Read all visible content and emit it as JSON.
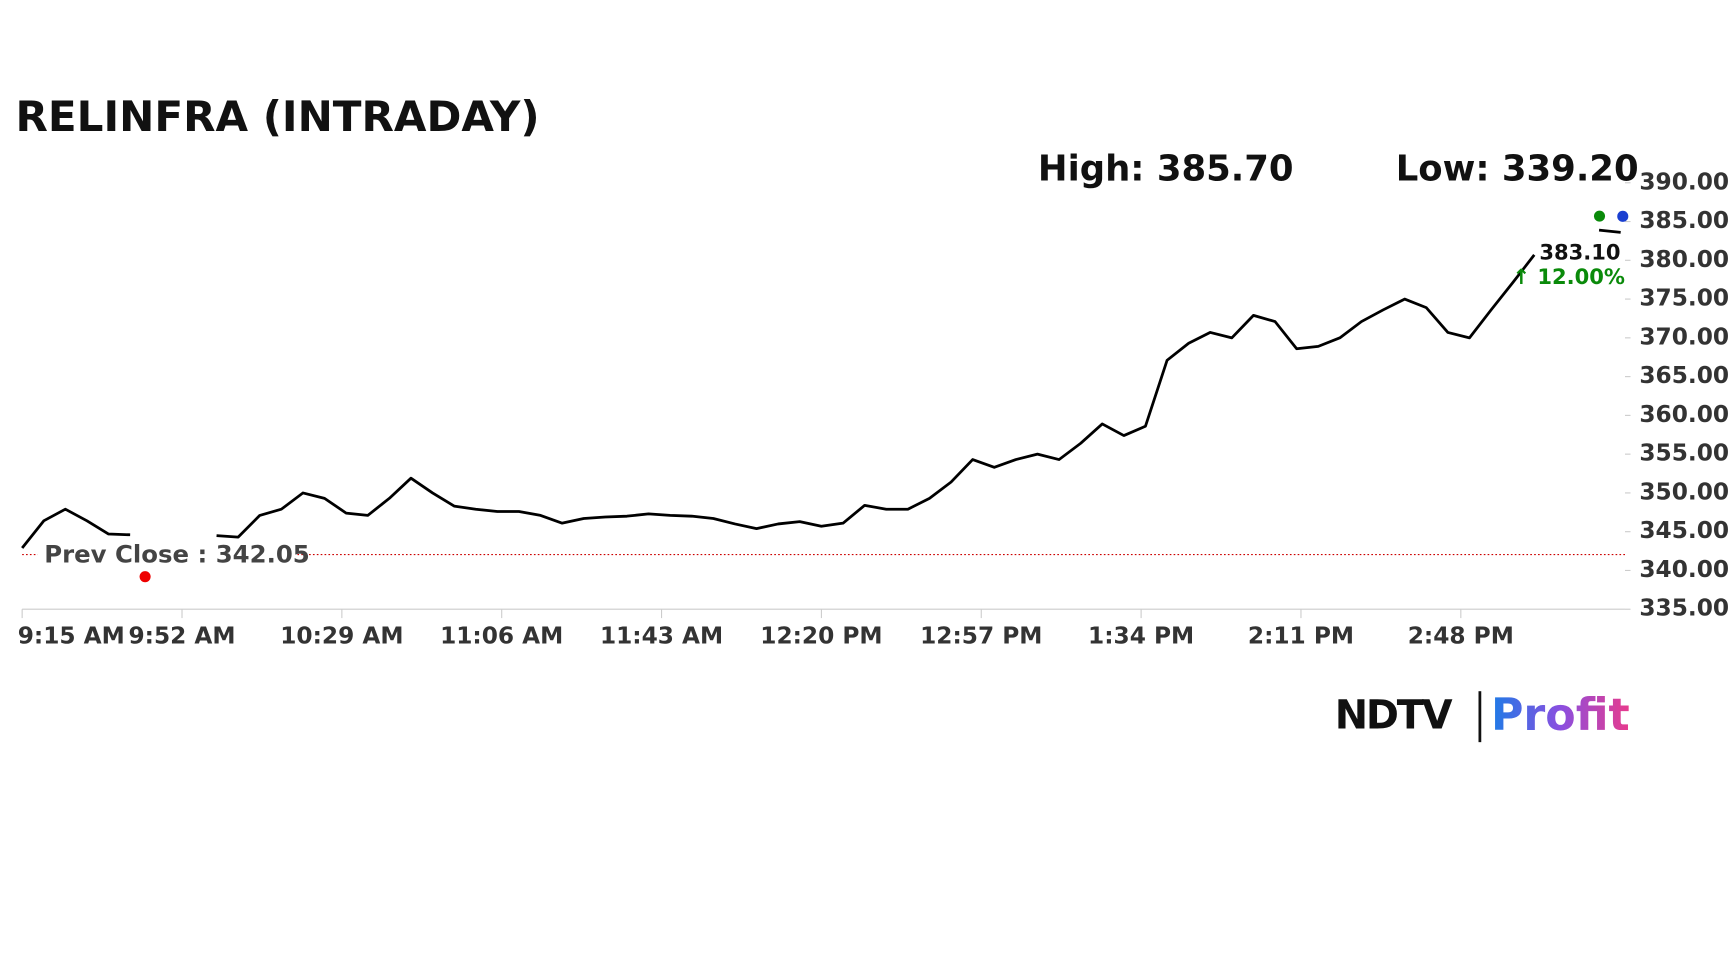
{
  "chart_data": {
    "type": "line",
    "title": "RELINFRA (INTRADAY)",
    "high": {
      "value": 385.7,
      "label": "High: 385.70"
    },
    "low": {
      "value": 339.2,
      "label": "Low: 339.20"
    },
    "prev_close": {
      "value": 342.05,
      "label": "Prev Close : 342.05"
    },
    "last": {
      "value": 383.1,
      "label": "383.10"
    },
    "change": {
      "value": 12,
      "label": "↑ 12.00%"
    },
    "x": [
      "9:15 AM",
      "9:20 AM",
      "9:25 AM",
      "9:30 AM",
      "9:35 AM",
      "9:40 AM",
      "9:45 AM",
      "9:50 AM",
      "9:55 AM",
      "10:00 AM",
      "10:05 AM",
      "10:10 AM",
      "10:15 AM",
      "10:20 AM",
      "10:25 AM",
      "10:30 AM",
      "10:35 AM",
      "10:40 AM",
      "10:45 AM",
      "10:50 AM",
      "10:55 AM",
      "11:00 AM",
      "11:05 AM",
      "11:10 AM",
      "11:15 AM",
      "11:20 AM",
      "11:25 AM",
      "11:30 AM",
      "11:35 AM",
      "11:40 AM",
      "11:45 AM",
      "11:50 AM",
      "11:55 AM",
      "12:00 PM",
      "12:05 PM",
      "12:10 PM",
      "12:15 PM",
      "12:20 PM",
      "12:25 PM",
      "12:30 PM",
      "12:35 PM",
      "12:40 PM",
      "12:45 PM",
      "12:50 PM",
      "12:55 PM",
      "1:00 PM",
      "1:05 PM",
      "1:10 PM",
      "1:15 PM",
      "1:20 PM",
      "1:25 PM",
      "1:30 PM",
      "1:35 PM",
      "1:40 PM",
      "1:45 PM",
      "1:50 PM",
      "1:55 PM",
      "2:00 PM",
      "2:05 PM",
      "2:10 PM",
      "2:15 PM",
      "2:20 PM",
      "2:25 PM",
      "2:30 PM",
      "2:35 PM",
      "2:40 PM",
      "2:45 PM",
      "2:50 PM",
      "2:55 PM",
      "3:00 PM",
      "3:05 PM",
      "3:10 PM",
      "3:15 PM",
      "3:20 PM",
      "3:25 PM"
    ],
    "series": [
      {
        "name": "RELINFRA",
        "color": "#000000",
        "values": [
          342.9,
          346.4,
          347.9,
          346.4,
          344.7,
          344.6,
          null,
          null,
          null,
          344.5,
          344.3,
          347.1,
          347.9,
          350,
          349.3,
          347.4,
          347.1,
          349.3,
          351.9,
          350,
          348.3,
          347.9,
          347.6,
          347.6,
          347.1,
          346.1,
          346.7,
          346.9,
          347,
          347.3,
          347.1,
          347,
          346.7,
          346,
          345.4,
          346,
          346.3,
          345.7,
          346.1,
          348.4,
          347.9,
          347.9,
          349.3,
          351.4,
          354.3,
          353.3,
          354.3,
          355,
          354.3,
          356.4,
          358.9,
          357.4,
          358.6,
          367.1,
          369.3,
          370.7,
          370,
          372.9,
          372.1,
          368.6,
          368.9,
          370,
          372.1,
          373.6,
          375,
          373.9,
          370.7,
          370,
          373.6,
          377.1,
          380.7,
          null,
          null,
          383.9,
          383.6
        ]
      }
    ],
    "xlim": [
      "9:15 AM",
      "3:26 PM"
    ],
    "xticks": [
      "9:15 AM",
      "9:52 AM",
      "10:29 AM",
      "11:06 AM",
      "11:43 AM",
      "12:20 PM",
      "12:57 PM",
      "1:34 PM",
      "2:11 PM",
      "2:48 PM"
    ],
    "ylim": [
      335,
      390
    ],
    "yticks": [
      {
        "value": 335,
        "label": "335.00"
      },
      {
        "value": 340,
        "label": "340.00"
      },
      {
        "value": 345,
        "label": "345.00"
      },
      {
        "value": 350,
        "label": "350.00"
      },
      {
        "value": 355,
        "label": "355.00"
      },
      {
        "value": 360,
        "label": "360.00"
      },
      {
        "value": 365,
        "label": "365.00"
      },
      {
        "value": 370,
        "label": "370.00"
      },
      {
        "value": 375,
        "label": "375.00"
      },
      {
        "value": 380,
        "label": "380.00"
      },
      {
        "value": 385,
        "label": "385.00"
      },
      {
        "value": 390,
        "label": "390.00"
      }
    ]
  },
  "logo": {
    "left": "NDTV",
    "right": "Profit"
  }
}
